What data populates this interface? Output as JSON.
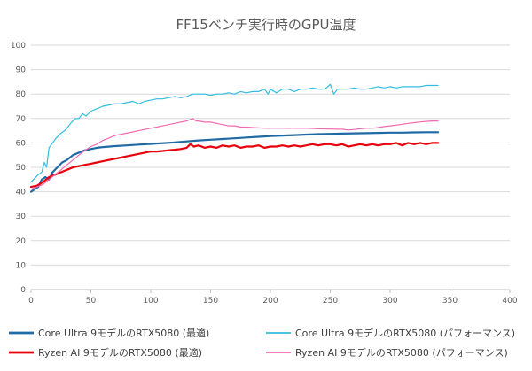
{
  "chart_data": {
    "type": "line",
    "title": "FF15ベンチ実行時のGPU温度",
    "xlabel": "",
    "ylabel": "",
    "xlim": [
      0,
      400
    ],
    "ylim": [
      0,
      100
    ],
    "x_ticks": [
      0,
      50,
      100,
      150,
      200,
      250,
      300,
      350,
      400
    ],
    "y_ticks": [
      0,
      10,
      20,
      30,
      40,
      50,
      60,
      70,
      80,
      90,
      100
    ],
    "grid": "horizontal",
    "legend_position": "bottom",
    "series": [
      {
        "name": "Core Ultra 9モデルのRTX5080 (最適)",
        "color": "#1f6aa5",
        "width": 2.2,
        "points": [
          [
            0,
            40
          ],
          [
            3,
            41
          ],
          [
            6,
            42
          ],
          [
            9,
            45
          ],
          [
            12,
            46
          ],
          [
            15,
            45
          ],
          [
            18,
            48
          ],
          [
            22,
            50
          ],
          [
            26,
            52
          ],
          [
            30,
            53
          ],
          [
            35,
            55
          ],
          [
            40,
            56
          ],
          [
            45,
            57
          ],
          [
            50,
            57.5
          ],
          [
            55,
            58
          ],
          [
            60,
            58.3
          ],
          [
            70,
            58.7
          ],
          [
            80,
            59
          ],
          [
            90,
            59.3
          ],
          [
            100,
            59.6
          ],
          [
            110,
            59.9
          ],
          [
            120,
            60.2
          ],
          [
            130,
            60.6
          ],
          [
            140,
            61
          ],
          [
            150,
            61.3
          ],
          [
            160,
            61.6
          ],
          [
            170,
            61.9
          ],
          [
            180,
            62.2
          ],
          [
            190,
            62.5
          ],
          [
            200,
            62.8
          ],
          [
            210,
            63
          ],
          [
            220,
            63.2
          ],
          [
            230,
            63.4
          ],
          [
            240,
            63.6
          ],
          [
            250,
            63.7
          ],
          [
            260,
            63.8
          ],
          [
            270,
            63.9
          ],
          [
            280,
            64
          ],
          [
            290,
            64.1
          ],
          [
            300,
            64.2
          ],
          [
            310,
            64.2
          ],
          [
            320,
            64.3
          ],
          [
            330,
            64.4
          ],
          [
            340,
            64.4
          ]
        ]
      },
      {
        "name": "Core Ultra 9モデルのRTX5080 (パフォーマンス)",
        "color": "#33bde0",
        "width": 1.2,
        "points": [
          [
            0,
            44
          ],
          [
            3,
            45.5
          ],
          [
            6,
            47
          ],
          [
            9,
            48
          ],
          [
            11,
            52
          ],
          [
            13,
            50
          ],
          [
            15,
            58
          ],
          [
            18,
            60
          ],
          [
            21,
            62
          ],
          [
            25,
            64
          ],
          [
            28,
            65
          ],
          [
            30,
            66
          ],
          [
            33,
            68
          ],
          [
            37,
            70
          ],
          [
            40,
            70
          ],
          [
            43,
            72
          ],
          [
            46,
            71
          ],
          [
            50,
            73
          ],
          [
            55,
            74
          ],
          [
            60,
            75
          ],
          [
            65,
            75.5
          ],
          [
            70,
            76
          ],
          [
            75,
            76
          ],
          [
            80,
            76.5
          ],
          [
            85,
            77
          ],
          [
            90,
            76
          ],
          [
            95,
            77
          ],
          [
            100,
            77.5
          ],
          [
            105,
            78
          ],
          [
            110,
            78
          ],
          [
            115,
            78.5
          ],
          [
            120,
            79
          ],
          [
            125,
            78.5
          ],
          [
            130,
            79
          ],
          [
            135,
            80
          ],
          [
            140,
            80
          ],
          [
            145,
            80
          ],
          [
            150,
            79.5
          ],
          [
            155,
            80
          ],
          [
            160,
            80
          ],
          [
            165,
            80.5
          ],
          [
            170,
            80
          ],
          [
            175,
            81
          ],
          [
            180,
            80.5
          ],
          [
            185,
            81
          ],
          [
            190,
            81
          ],
          [
            195,
            82
          ],
          [
            198,
            80
          ],
          [
            200,
            82
          ],
          [
            205,
            80.5
          ],
          [
            210,
            82
          ],
          [
            215,
            82
          ],
          [
            220,
            81
          ],
          [
            225,
            82
          ],
          [
            230,
            82
          ],
          [
            235,
            82.5
          ],
          [
            240,
            82
          ],
          [
            245,
            82
          ],
          [
            248,
            83
          ],
          [
            250,
            84
          ],
          [
            253,
            80
          ],
          [
            256,
            82
          ],
          [
            260,
            82
          ],
          [
            265,
            82
          ],
          [
            270,
            82.5
          ],
          [
            275,
            82
          ],
          [
            280,
            82
          ],
          [
            285,
            82.5
          ],
          [
            290,
            83
          ],
          [
            295,
            82.5
          ],
          [
            300,
            83
          ],
          [
            305,
            82.5
          ],
          [
            310,
            83
          ],
          [
            315,
            83
          ],
          [
            320,
            83
          ],
          [
            325,
            83
          ],
          [
            330,
            83.5
          ],
          [
            335,
            83.5
          ],
          [
            340,
            83.5
          ]
        ]
      },
      {
        "name": "Ryzen AI 9モデルのRTX5080 (最適)",
        "color": "#e8000b",
        "width": 2.2,
        "points": [
          [
            0,
            42
          ],
          [
            5,
            42.5
          ],
          [
            10,
            44
          ],
          [
            15,
            46
          ],
          [
            20,
            47
          ],
          [
            25,
            48
          ],
          [
            30,
            49
          ],
          [
            35,
            50
          ],
          [
            40,
            50.5
          ],
          [
            45,
            51
          ],
          [
            50,
            51.5
          ],
          [
            55,
            52
          ],
          [
            60,
            52.5
          ],
          [
            65,
            53
          ],
          [
            70,
            53.5
          ],
          [
            75,
            54
          ],
          [
            80,
            54.5
          ],
          [
            85,
            55
          ],
          [
            90,
            55.5
          ],
          [
            95,
            56
          ],
          [
            100,
            56.5
          ],
          [
            105,
            56.5
          ],
          [
            110,
            56.7
          ],
          [
            115,
            57
          ],
          [
            120,
            57.2
          ],
          [
            125,
            57.5
          ],
          [
            130,
            58
          ],
          [
            133,
            59.5
          ],
          [
            136,
            58.5
          ],
          [
            140,
            59
          ],
          [
            145,
            58
          ],
          [
            150,
            58.5
          ],
          [
            155,
            58
          ],
          [
            160,
            59
          ],
          [
            165,
            58.5
          ],
          [
            170,
            59
          ],
          [
            175,
            58
          ],
          [
            180,
            58.5
          ],
          [
            185,
            58.5
          ],
          [
            190,
            59
          ],
          [
            195,
            58
          ],
          [
            200,
            58.5
          ],
          [
            205,
            58.5
          ],
          [
            210,
            59
          ],
          [
            215,
            58.5
          ],
          [
            220,
            59
          ],
          [
            225,
            58.5
          ],
          [
            230,
            59
          ],
          [
            235,
            59.5
          ],
          [
            240,
            59
          ],
          [
            245,
            59.5
          ],
          [
            250,
            59.5
          ],
          [
            255,
            59
          ],
          [
            260,
            59.5
          ],
          [
            265,
            58.5
          ],
          [
            270,
            59
          ],
          [
            275,
            59.5
          ],
          [
            280,
            59
          ],
          [
            285,
            59.5
          ],
          [
            290,
            59
          ],
          [
            295,
            59.5
          ],
          [
            300,
            59.5
          ],
          [
            305,
            60
          ],
          [
            310,
            59
          ],
          [
            315,
            60
          ],
          [
            320,
            59.5
          ],
          [
            325,
            60
          ],
          [
            330,
            59.5
          ],
          [
            335,
            60
          ],
          [
            340,
            60
          ]
        ]
      },
      {
        "name": "Ryzen AI 9モデルのRTX5080 (パフォーマンス)",
        "color": "#f06bb0",
        "width": 1.2,
        "points": [
          [
            0,
            41
          ],
          [
            5,
            42
          ],
          [
            10,
            43
          ],
          [
            15,
            45
          ],
          [
            20,
            47
          ],
          [
            25,
            49
          ],
          [
            30,
            51
          ],
          [
            35,
            53
          ],
          [
            40,
            55
          ],
          [
            45,
            57
          ],
          [
            50,
            58.5
          ],
          [
            55,
            59.5
          ],
          [
            60,
            61
          ],
          [
            65,
            62
          ],
          [
            70,
            63
          ],
          [
            75,
            63.5
          ],
          [
            80,
            64
          ],
          [
            85,
            64.5
          ],
          [
            90,
            65
          ],
          [
            95,
            65.5
          ],
          [
            100,
            66
          ],
          [
            105,
            66.5
          ],
          [
            110,
            67
          ],
          [
            115,
            67.5
          ],
          [
            120,
            68
          ],
          [
            125,
            68.5
          ],
          [
            130,
            69
          ],
          [
            135,
            70
          ],
          [
            138,
            69
          ],
          [
            140,
            69
          ],
          [
            145,
            68.5
          ],
          [
            150,
            68.5
          ],
          [
            155,
            68
          ],
          [
            160,
            67.5
          ],
          [
            165,
            67
          ],
          [
            170,
            67
          ],
          [
            175,
            66.5
          ],
          [
            180,
            66.5
          ],
          [
            185,
            66.3
          ],
          [
            190,
            66.2
          ],
          [
            195,
            66
          ],
          [
            200,
            66
          ],
          [
            210,
            66
          ],
          [
            220,
            66
          ],
          [
            230,
            66
          ],
          [
            240,
            65.8
          ],
          [
            250,
            65.7
          ],
          [
            260,
            65.6
          ],
          [
            265,
            65.3
          ],
          [
            270,
            65.5
          ],
          [
            275,
            65.8
          ],
          [
            280,
            66
          ],
          [
            285,
            66
          ],
          [
            290,
            66.3
          ],
          [
            295,
            66.7
          ],
          [
            300,
            67
          ],
          [
            305,
            67.3
          ],
          [
            310,
            67.6
          ],
          [
            315,
            68
          ],
          [
            320,
            68.3
          ],
          [
            325,
            68.6
          ],
          [
            330,
            68.8
          ],
          [
            335,
            69
          ],
          [
            340,
            69
          ]
        ]
      }
    ]
  }
}
